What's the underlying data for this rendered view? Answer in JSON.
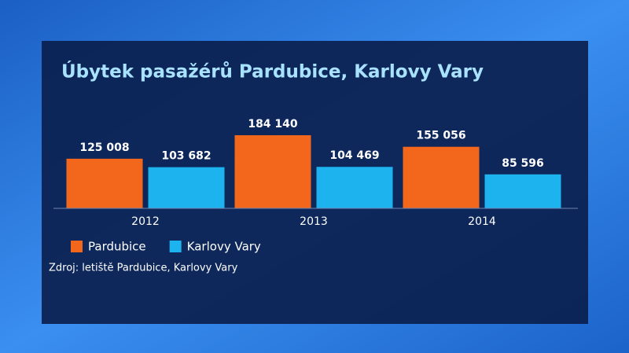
{
  "chart_data": {
    "type": "bar",
    "title": "Úbytek pasažérů  Pardubice, Karlovy Vary",
    "categories": [
      "2012",
      "2013",
      "2014"
    ],
    "series": [
      {
        "name": "Pardubice",
        "color": "#f2671c",
        "values": [
          125008,
          184140,
          155056
        ],
        "value_labels": [
          "125 008",
          "184 140",
          "155 056"
        ]
      },
      {
        "name": "Karlovy Vary",
        "color": "#1db3ef",
        "values": [
          103682,
          104469,
          85596
        ],
        "value_labels": [
          "103 682",
          "104 469",
          "85 596"
        ]
      }
    ],
    "ylim": [
      0,
      200000
    ],
    "source": "Zdroj: letiště Pardubice, Karlovy Vary"
  }
}
